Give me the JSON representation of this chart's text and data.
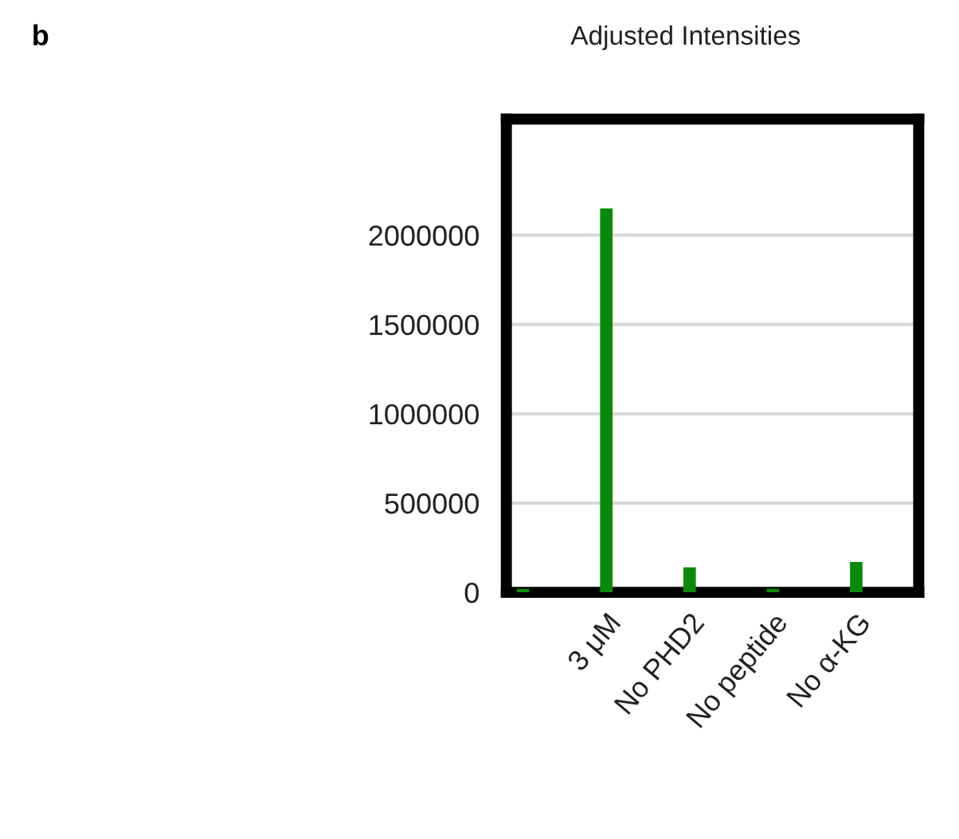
{
  "chart_data": {
    "type": "bar",
    "title": "Adjusted Intensities",
    "annotations": [
      "b"
    ],
    "categories": [
      null,
      "3 μM",
      "No PHD2",
      "No peptide",
      "No α-KG"
    ],
    "values": [
      20000,
      2150000,
      140000,
      20000,
      170000
    ],
    "color": "#0a8a0a",
    "ylim": [
      0,
      2650000
    ],
    "yticks": [
      0,
      500000,
      1000000,
      1500000,
      2000000
    ],
    "grid": "y",
    "legend": false
  }
}
